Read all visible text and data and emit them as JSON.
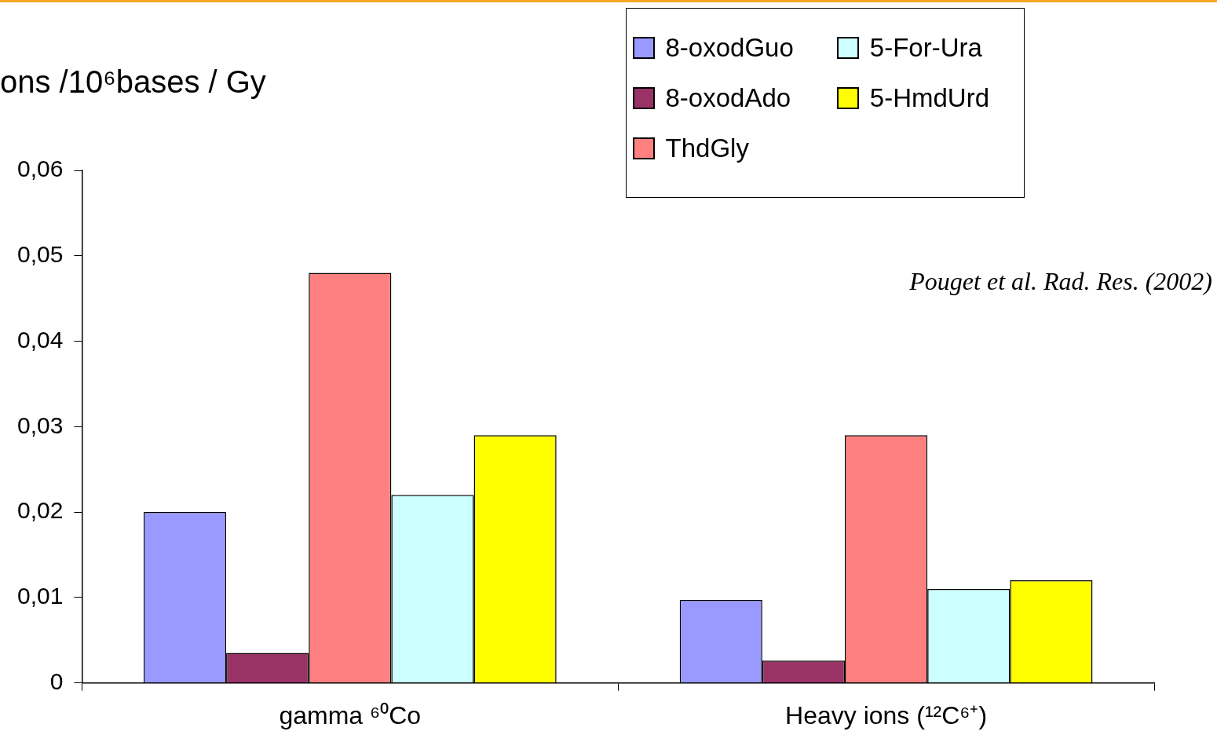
{
  "chart_data": {
    "type": "bar",
    "ylabel": "ons /10⁶bases / Gy",
    "categories": [
      "gamma ⁶⁰Co",
      "Heavy ions (¹²C⁶⁺)"
    ],
    "series": [
      {
        "name": "8-oxodGuo",
        "color": "#9999ff",
        "values": [
          0.02,
          0.0097
        ]
      },
      {
        "name": "8-oxodAdo",
        "color": "#993366",
        "values": [
          0.0035,
          0.0026
        ]
      },
      {
        "name": "ThdGly",
        "color": "#ff8080",
        "values": [
          0.048,
          0.029
        ]
      },
      {
        "name": "5-For-Ura",
        "color": "#ccffff",
        "values": [
          0.022,
          0.011
        ]
      },
      {
        "name": "5-HmdUrd",
        "color": "#ffff00",
        "values": [
          0.029,
          0.012
        ]
      }
    ],
    "ylim": [
      0,
      0.06
    ],
    "yticks": [
      {
        "value": 0,
        "label": "0"
      },
      {
        "value": 0.01,
        "label": "0,01"
      },
      {
        "value": 0.02,
        "label": "0,02"
      },
      {
        "value": 0.03,
        "label": "0,03"
      },
      {
        "value": 0.04,
        "label": "0,04"
      },
      {
        "value": 0.05,
        "label": "0,05"
      },
      {
        "value": 0.06,
        "label": "0,06"
      }
    ],
    "grid": false,
    "legend": "top right",
    "annotations": [
      "Pouget et al. Rad. Res. (2002)"
    ]
  }
}
